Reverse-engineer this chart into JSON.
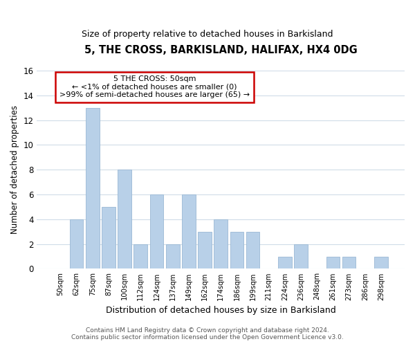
{
  "title": "5, THE CROSS, BARKISLAND, HALIFAX, HX4 0DG",
  "subtitle": "Size of property relative to detached houses in Barkisland",
  "xlabel": "Distribution of detached houses by size in Barkisland",
  "ylabel": "Number of detached properties",
  "bar_labels": [
    "50sqm",
    "62sqm",
    "75sqm",
    "87sqm",
    "100sqm",
    "112sqm",
    "124sqm",
    "137sqm",
    "149sqm",
    "162sqm",
    "174sqm",
    "186sqm",
    "199sqm",
    "211sqm",
    "224sqm",
    "236sqm",
    "248sqm",
    "261sqm",
    "273sqm",
    "286sqm",
    "298sqm"
  ],
  "bar_values": [
    0,
    4,
    13,
    5,
    8,
    2,
    6,
    2,
    6,
    3,
    4,
    3,
    3,
    0,
    1,
    2,
    0,
    1,
    1,
    0,
    1
  ],
  "bar_color": "#b8d0e8",
  "bar_edge_color": "#9ab8d4",
  "ylim": [
    0,
    16
  ],
  "yticks": [
    0,
    2,
    4,
    6,
    8,
    10,
    12,
    14,
    16
  ],
  "annotation_text": "5 THE CROSS: 50sqm\n← <1% of detached houses are smaller (0)\n>99% of semi-detached houses are larger (65) →",
  "annotation_box_color": "#ffffff",
  "annotation_box_edgecolor": "#cc0000",
  "footer_line1": "Contains HM Land Registry data © Crown copyright and database right 2024.",
  "footer_line2": "Contains public sector information licensed under the Open Government Licence v3.0.",
  "background_color": "#ffffff",
  "grid_color": "#d0dce8"
}
